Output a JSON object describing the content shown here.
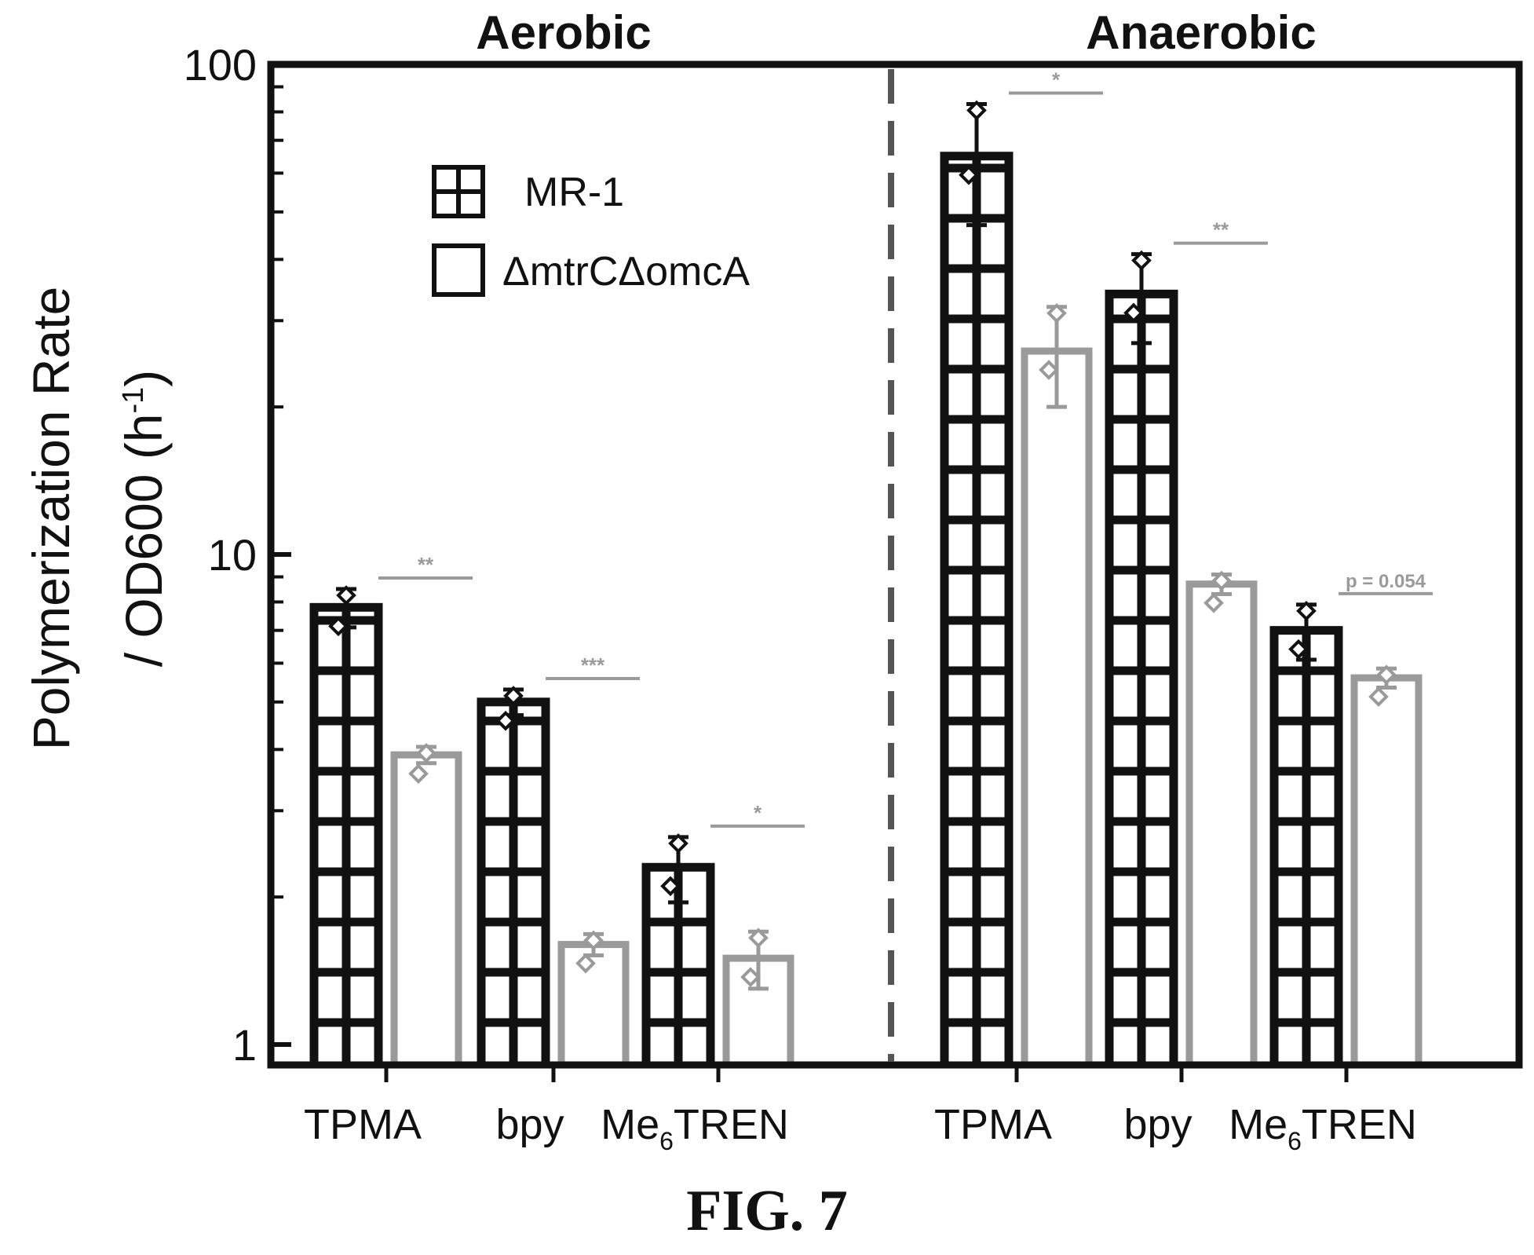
{
  "figure": {
    "caption": "FIG. 7"
  },
  "chart_data": {
    "type": "bar",
    "ylabel_line1": "Polymerization Rate",
    "ylabel_line2": "/ OD600 (h-1)",
    "yscale": "log",
    "ylim": [
      1,
      100
    ],
    "yticks": [
      "1",
      "10",
      "100"
    ],
    "panels": [
      {
        "title": "Aerobic",
        "categories": [
          "TPMA",
          "bpy",
          "Me6TREN"
        ]
      },
      {
        "title": "Anaerobic",
        "categories": [
          "TPMA",
          "bpy",
          "Me6TREN"
        ]
      }
    ],
    "series": [
      {
        "name": "MR-1",
        "pattern": "grid",
        "color": "#111111",
        "values": [
          7.8,
          5.0,
          2.3,
          65,
          34,
          7.0
        ],
        "errors": [
          0.7,
          0.3,
          0.35,
          18,
          7,
          0.9
        ]
      },
      {
        "name": "ΔmtrCΔomcA",
        "pattern": "open",
        "color": "#9a9a9a",
        "values": [
          3.9,
          1.6,
          1.5,
          26,
          8.7,
          5.6
        ],
        "errors": [
          0.15,
          0.08,
          0.2,
          6,
          0.4,
          0.25
        ]
      }
    ],
    "significance": [
      {
        "group": 0,
        "label": "**"
      },
      {
        "group": 1,
        "label": "***"
      },
      {
        "group": 2,
        "label": "*"
      },
      {
        "group": 3,
        "label": "*"
      },
      {
        "group": 4,
        "label": "**"
      },
      {
        "group": 5,
        "label": "p = 0.054"
      }
    ],
    "grid": false,
    "legend_position": "top-left"
  }
}
